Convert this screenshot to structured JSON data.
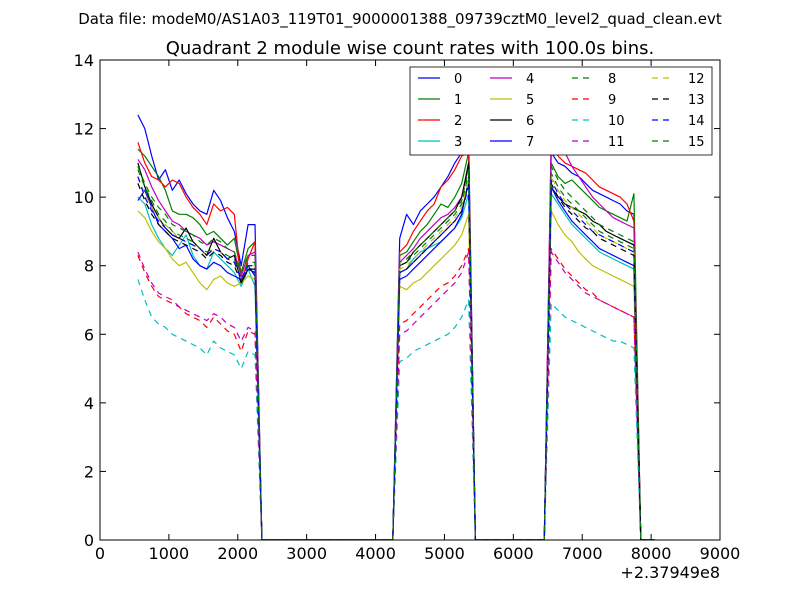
{
  "figure": {
    "suptitle": "Data file: modeM0/AS1A03_119T01_9000001388_09739cztM0_level2_quad_clean.evt"
  },
  "chart_data": {
    "type": "line",
    "title": "Quadrant 2 module wise count rates with 100.0s bins.",
    "xlabel": "",
    "ylabel": "",
    "x_offset_label": "+2.37949e8",
    "xlim": [
      0,
      9000
    ],
    "ylim": [
      0,
      14
    ],
    "xticks": [
      0,
      1000,
      2000,
      3000,
      4000,
      5000,
      6000,
      7000,
      8000,
      9000
    ],
    "yticks": [
      0,
      2,
      4,
      6,
      8,
      10,
      12,
      14
    ],
    "grid": false,
    "legend_position": "top-right",
    "legend_columns": 4,
    "x_bins": [
      550,
      650,
      750,
      850,
      950,
      1050,
      1150,
      1250,
      1350,
      1450,
      1550,
      1650,
      1750,
      1850,
      1950,
      2050,
      2150,
      2250,
      2350,
      2450,
      2550,
      2650,
      2750,
      2850,
      2950,
      3050,
      3150,
      3250,
      3350,
      3450,
      3550,
      3650,
      3750,
      3850,
      3950,
      4050,
      4150,
      4250,
      4350,
      4450,
      4550,
      4650,
      4750,
      4850,
      4950,
      5050,
      5150,
      5250,
      5350,
      5450,
      5550,
      5650,
      5750,
      5850,
      5950,
      6050,
      6150,
      6250,
      6350,
      6450,
      6550,
      6650,
      6750,
      6850,
      6950,
      7050,
      7150,
      7250,
      7350,
      7450,
      7550,
      7650,
      7750,
      7850,
      7950,
      8050
    ],
    "series": [
      {
        "name": "0",
        "color": "#0000ff",
        "dash": "solid",
        "seg1": [
          12.4,
          12.0,
          11.2,
          10.5,
          10.8,
          10.2,
          10.5,
          10.1,
          9.8,
          9.6,
          9.5,
          10.2,
          9.9,
          9.4,
          9.0,
          8.0,
          9.2,
          9.2
        ],
        "seg2": [
          8.8,
          9.5,
          9.2,
          9.6,
          9.8,
          10.0,
          10.3,
          10.6,
          11.0,
          11.3,
          11.8
        ],
        "seg3": [
          11.3,
          11.0,
          10.9,
          10.7,
          10.6,
          10.4,
          10.2,
          10.1,
          10.0,
          9.9,
          9.8,
          9.6,
          9.5
        ]
      },
      {
        "name": "1",
        "color": "#008000",
        "dash": "solid",
        "seg1": [
          11.4,
          11.2,
          10.9,
          10.6,
          10.2,
          9.6,
          9.5,
          9.5,
          9.4,
          9.2,
          8.9,
          9.0,
          8.8,
          8.6,
          8.8,
          7.8,
          8.5,
          8.7
        ],
        "seg2": [
          8.3,
          8.4,
          8.7,
          9.0,
          9.2,
          9.5,
          9.8,
          9.7,
          10.0,
          10.4,
          11.3
        ],
        "seg3": [
          11.0,
          10.6,
          10.4,
          10.5,
          10.3,
          10.1,
          9.9,
          9.7,
          9.6,
          9.5,
          9.4,
          9.3,
          10.1
        ]
      },
      {
        "name": "2",
        "color": "#ff0000",
        "dash": "solid",
        "seg1": [
          11.6,
          11.0,
          10.6,
          10.5,
          10.3,
          10.5,
          10.4,
          10.0,
          9.7,
          9.5,
          9.2,
          9.8,
          9.6,
          9.7,
          9.5,
          7.5,
          8.2,
          8.7
        ],
        "seg2": [
          8.4,
          8.6,
          9.0,
          9.3,
          9.6,
          9.8,
          10.3,
          10.5,
          10.8,
          11.2,
          11.3
        ],
        "seg3": [
          11.6,
          11.2,
          11.0,
          10.9,
          10.8,
          10.7,
          10.5,
          10.3,
          10.2,
          10.1,
          10.0,
          9.8,
          9.3
        ]
      },
      {
        "name": "3",
        "color": "#00bfbf",
        "dash": "solid",
        "seg1": [
          10.0,
          9.8,
          9.2,
          8.8,
          8.5,
          8.3,
          8.6,
          8.9,
          8.3,
          8.0,
          7.9,
          8.4,
          8.2,
          8.0,
          7.8,
          7.4,
          7.9,
          7.4
        ],
        "seg2": [
          7.8,
          7.9,
          8.2,
          8.4,
          8.5,
          8.6,
          8.7,
          8.9,
          9.1,
          9.4,
          10.1
        ],
        "seg3": [
          10.1,
          9.8,
          9.5,
          9.2,
          9.0,
          8.8,
          8.6,
          8.4,
          8.3,
          8.2,
          8.1,
          8.0,
          7.9
        ]
      },
      {
        "name": "4",
        "color": "#bf00bf",
        "dash": "solid",
        "seg1": [
          11.1,
          10.8,
          10.3,
          9.9,
          9.6,
          9.3,
          9.2,
          9.0,
          8.9,
          8.8,
          8.6,
          8.7,
          8.6,
          8.5,
          8.4,
          7.7,
          8.3,
          8.4
        ],
        "seg2": [
          8.1,
          8.3,
          8.5,
          8.8,
          9.0,
          9.2,
          9.4,
          9.5,
          9.7,
          10.0,
          10.9
        ],
        "seg3": [
          11.8,
          11.8,
          11.3,
          10.9,
          10.6,
          10.3,
          10.0,
          9.8,
          9.6,
          9.4,
          9.3,
          9.2,
          9.1
        ]
      },
      {
        "name": "5",
        "color": "#bfbf00",
        "dash": "solid",
        "seg1": [
          9.6,
          9.4,
          9.0,
          8.7,
          8.5,
          8.2,
          8.0,
          8.1,
          7.8,
          7.5,
          7.3,
          7.6,
          7.7,
          7.5,
          7.4,
          7.5,
          7.7,
          7.6
        ],
        "seg2": [
          7.4,
          7.3,
          7.5,
          7.6,
          7.8,
          8.0,
          8.2,
          8.4,
          8.6,
          8.9,
          9.5
        ],
        "seg3": [
          9.6,
          9.2,
          8.9,
          8.7,
          8.4,
          8.2,
          8.0,
          7.9,
          7.8,
          7.7,
          7.6,
          7.5,
          7.4
        ]
      },
      {
        "name": "6",
        "color": "#000000",
        "dash": "solid",
        "seg1": [
          11.0,
          10.3,
          9.8,
          9.4,
          9.1,
          8.9,
          8.8,
          9.1,
          8.7,
          8.5,
          8.3,
          8.8,
          8.4,
          8.2,
          8.3,
          7.5,
          7.9,
          7.8
        ],
        "seg2": [
          8.0,
          8.1,
          8.4,
          8.6,
          8.8,
          9.0,
          9.2,
          9.4,
          9.6,
          10.0,
          11.0
        ],
        "seg3": [
          10.3,
          10.0,
          9.8,
          9.7,
          9.6,
          9.5,
          9.3,
          9.2,
          9.0,
          8.9,
          8.8,
          8.7,
          8.6
        ]
      },
      {
        "name": "7",
        "color": "#0000ff",
        "dash": "solid",
        "seg1": [
          9.9,
          10.2,
          9.7,
          9.2,
          9.0,
          8.8,
          8.5,
          8.6,
          8.2,
          8.0,
          7.9,
          8.1,
          8.0,
          7.8,
          7.7,
          7.6,
          8.0,
          7.7
        ],
        "seg2": [
          7.6,
          7.7,
          7.9,
          8.1,
          8.3,
          8.5,
          8.7,
          8.9,
          9.1,
          9.5,
          10.5
        ],
        "seg3": [
          10.3,
          9.9,
          9.6,
          9.3,
          9.1,
          8.9,
          8.7,
          8.5,
          8.4,
          8.3,
          8.2,
          8.1,
          8.0
        ]
      },
      {
        "name": "8",
        "color": "#008000",
        "dash": "dashed",
        "seg1": [
          10.8,
          10.3,
          9.9,
          9.5,
          9.3,
          9.0,
          8.9,
          8.8,
          8.7,
          8.5,
          8.4,
          8.5,
          8.4,
          8.3,
          8.2,
          7.6,
          8.1,
          8.1
        ],
        "seg2": [
          8.0,
          8.1,
          8.3,
          8.5,
          8.7,
          8.9,
          9.1,
          9.3,
          9.5,
          9.8,
          10.7
        ],
        "seg3": [
          10.7,
          10.3,
          10.0,
          9.8,
          9.6,
          9.4,
          9.2,
          9.0,
          8.9,
          8.8,
          8.7,
          8.6,
          8.5
        ]
      },
      {
        "name": "9",
        "color": "#ff0000",
        "dash": "dashed",
        "seg1": [
          8.3,
          7.8,
          7.4,
          7.1,
          7.0,
          6.9,
          6.8,
          6.6,
          6.5,
          6.4,
          6.2,
          6.5,
          6.3,
          6.1,
          6.0,
          5.5,
          6.1,
          6.0
        ],
        "seg2": [
          6.3,
          6.4,
          6.6,
          6.8,
          7.0,
          7.2,
          7.4,
          7.5,
          7.7,
          8.0,
          8.5
        ],
        "seg3": [
          8.5,
          8.2,
          7.9,
          7.7,
          7.5,
          7.3,
          7.2,
          7.0,
          6.9,
          6.8,
          6.7,
          6.6,
          6.5
        ]
      },
      {
        "name": "10",
        "color": "#00bfbf",
        "dash": "dashed",
        "seg1": [
          7.6,
          7.0,
          6.5,
          6.3,
          6.2,
          6.0,
          5.9,
          5.8,
          5.7,
          5.6,
          5.4,
          5.8,
          5.6,
          5.5,
          5.4,
          5.0,
          5.5,
          5.4
        ],
        "seg2": [
          5.2,
          5.3,
          5.5,
          5.6,
          5.7,
          5.8,
          5.9,
          6.0,
          6.2,
          6.5,
          7.0
        ],
        "seg3": [
          6.9,
          6.7,
          6.5,
          6.4,
          6.3,
          6.2,
          6.1,
          6.0,
          5.9,
          5.8,
          5.8,
          5.7,
          5.6
        ]
      },
      {
        "name": "11",
        "color": "#bf00bf",
        "dash": "dashed",
        "seg1": [
          8.4,
          7.9,
          7.5,
          7.2,
          7.1,
          7.0,
          6.8,
          6.7,
          6.6,
          6.5,
          6.4,
          6.6,
          6.5,
          6.3,
          6.2,
          5.8,
          6.2,
          6.1
        ],
        "seg2": [
          6.0,
          6.1,
          6.3,
          6.5,
          6.7,
          6.9,
          7.1,
          7.3,
          7.5,
          7.8,
          8.4
        ],
        "seg3": [
          8.4,
          8.1,
          7.8,
          7.6,
          7.4,
          7.2,
          7.1,
          7.0,
          6.9,
          6.8,
          6.7,
          6.6,
          6.5
        ]
      },
      {
        "name": "12",
        "color": "#bfbf00",
        "dash": "dashed",
        "seg1": [
          10.6,
          10.1,
          9.7,
          9.4,
          9.2,
          9.0,
          8.8,
          8.7,
          8.6,
          8.5,
          8.3,
          8.5,
          8.4,
          8.2,
          8.1,
          7.6,
          8.0,
          8.0
        ],
        "seg2": [
          7.9,
          8.0,
          8.2,
          8.4,
          8.6,
          8.8,
          9.0,
          9.2,
          9.4,
          9.7,
          10.5
        ],
        "seg3": [
          10.6,
          10.2,
          9.9,
          9.7,
          9.5,
          9.3,
          9.1,
          8.9,
          8.8,
          8.7,
          8.6,
          8.5,
          8.4
        ]
      },
      {
        "name": "13",
        "color": "#000000",
        "dash": "dashed",
        "seg1": [
          10.4,
          9.9,
          9.5,
          9.2,
          9.0,
          8.8,
          8.7,
          8.6,
          8.5,
          8.4,
          8.2,
          8.4,
          8.3,
          8.1,
          8.0,
          7.5,
          7.9,
          7.9
        ],
        "seg2": [
          7.8,
          7.9,
          8.1,
          8.3,
          8.5,
          8.7,
          8.9,
          9.1,
          9.3,
          9.6,
          10.4
        ],
        "seg3": [
          10.4,
          10.0,
          9.7,
          9.5,
          9.3,
          9.1,
          9.0,
          8.8,
          8.7,
          8.6,
          8.5,
          8.4,
          8.3
        ]
      },
      {
        "name": "14",
        "color": "#0000ff",
        "dash": "dashed",
        "seg1": [
          10.6,
          10.0,
          9.6,
          9.3,
          9.1,
          8.9,
          8.8,
          8.7,
          8.6,
          8.5,
          8.3,
          8.5,
          8.4,
          8.2,
          8.1,
          7.6,
          8.0,
          8.0
        ],
        "seg2": [
          7.8,
          7.9,
          8.1,
          8.3,
          8.5,
          8.7,
          8.9,
          9.1,
          9.3,
          9.6,
          10.3
        ],
        "seg3": [
          10.5,
          10.1,
          9.8,
          9.6,
          9.4,
          9.2,
          9.0,
          8.9,
          8.8,
          8.7,
          8.6,
          8.5,
          8.4
        ]
      },
      {
        "name": "15",
        "color": "#008000",
        "dash": "dashed",
        "seg1": [
          10.9,
          10.4,
          10.0,
          9.7,
          9.5,
          9.2,
          9.1,
          9.0,
          8.9,
          8.7,
          8.6,
          8.8,
          8.7,
          8.5,
          8.4,
          7.8,
          8.3,
          8.3
        ],
        "seg2": [
          8.1,
          8.2,
          8.4,
          8.6,
          8.8,
          9.0,
          9.2,
          9.4,
          9.6,
          9.9,
          10.8
        ],
        "seg3": [
          10.9,
          10.5,
          10.2,
          10.0,
          9.8,
          9.6,
          9.4,
          9.2,
          9.1,
          9.0,
          8.9,
          8.8,
          8.7
        ]
      }
    ]
  }
}
